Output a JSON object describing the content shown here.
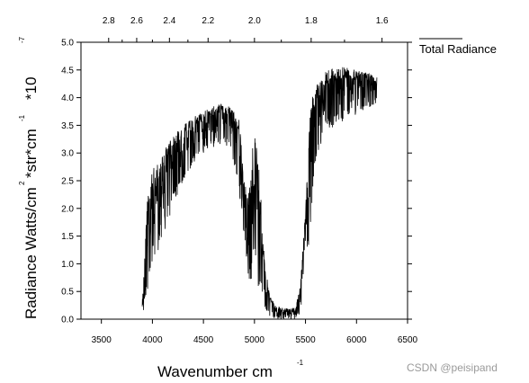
{
  "chart_data": {
    "type": "line",
    "xlabel": "Wavenumber cm",
    "xlabel_superscript": "-1",
    "ylabel": "Radiance Watts/cm",
    "ylabel_sup1": "2",
    "ylabel_mid": "*str*cm",
    "ylabel_sup2": "-1",
    "ylabel_scale": "*10",
    "ylabel_scale_exp": "-7",
    "xlim": [
      3300,
      6500
    ],
    "ylim": [
      0,
      5.0
    ],
    "x_ticks": [
      3500,
      4000,
      4500,
      5000,
      5500,
      6000,
      6500
    ],
    "x_tick_labels": [
      "3500",
      "4000",
      "4500",
      "5000",
      "5500",
      "6000",
      "6500"
    ],
    "y_ticks": [
      0.0,
      0.5,
      1.0,
      1.5,
      2.0,
      2.5,
      3.0,
      3.5,
      4.0,
      4.5,
      5.0
    ],
    "y_tick_labels": [
      "0.0",
      "0.5",
      "1.0",
      "1.5",
      "2.0",
      "2.5",
      "3.0",
      "3.5",
      "4.0",
      "4.5",
      "5.0"
    ],
    "top_axis_label_values": [
      2.8,
      2.6,
      2.4,
      2.2,
      2.0,
      1.8,
      1.6
    ],
    "top_axis_labels": [
      "2.8",
      "2.6",
      "2.4",
      "2.2",
      "2.0",
      "1.8",
      "1.6"
    ],
    "grid": false,
    "legend_position": "top-right",
    "series": [
      {
        "name": "Total Radiance",
        "color": "#000000",
        "envelope_upper": [
          [
            3900,
            0.3
          ],
          [
            3950,
            2.2
          ],
          [
            4000,
            2.7
          ],
          [
            4050,
            2.8
          ],
          [
            4100,
            3.0
          ],
          [
            4200,
            3.3
          ],
          [
            4300,
            3.5
          ],
          [
            4400,
            3.65
          ],
          [
            4500,
            3.75
          ],
          [
            4600,
            3.85
          ],
          [
            4700,
            3.9
          ],
          [
            4780,
            3.8
          ],
          [
            4850,
            3.6
          ],
          [
            4900,
            2.5
          ],
          [
            4950,
            2.3
          ],
          [
            5000,
            3.6
          ],
          [
            5050,
            2.6
          ],
          [
            5100,
            1.0
          ],
          [
            5150,
            0.45
          ],
          [
            5200,
            0.25
          ],
          [
            5300,
            0.2
          ],
          [
            5400,
            0.2
          ],
          [
            5450,
            0.6
          ],
          [
            5500,
            2.0
          ],
          [
            5550,
            3.9
          ],
          [
            5600,
            4.2
          ],
          [
            5700,
            4.5
          ],
          [
            5800,
            4.55
          ],
          [
            5900,
            4.55
          ],
          [
            6000,
            4.5
          ],
          [
            6100,
            4.45
          ],
          [
            6200,
            4.4
          ]
        ],
        "envelope_lower": [
          [
            3900,
            0.0
          ],
          [
            3950,
            0.5
          ],
          [
            4000,
            1.0
          ],
          [
            4050,
            1.2
          ],
          [
            4100,
            1.5
          ],
          [
            4200,
            2.0
          ],
          [
            4300,
            2.5
          ],
          [
            4400,
            2.8
          ],
          [
            4500,
            3.0
          ],
          [
            4600,
            3.1
          ],
          [
            4700,
            3.2
          ],
          [
            4780,
            3.0
          ],
          [
            4850,
            2.2
          ],
          [
            4900,
            1.5
          ],
          [
            4950,
            0.6
          ],
          [
            5000,
            0.9
          ],
          [
            5050,
            0.4
          ],
          [
            5100,
            0.2
          ],
          [
            5150,
            0.05
          ],
          [
            5200,
            0.0
          ],
          [
            5300,
            0.0
          ],
          [
            5400,
            0.0
          ],
          [
            5450,
            0.1
          ],
          [
            5500,
            0.8
          ],
          [
            5550,
            1.6
          ],
          [
            5600,
            2.8
          ],
          [
            5700,
            3.4
          ],
          [
            5800,
            3.5
          ],
          [
            5900,
            3.6
          ],
          [
            6000,
            3.7
          ],
          [
            6100,
            3.8
          ],
          [
            6200,
            3.9
          ]
        ]
      }
    ]
  },
  "watermark": "CSDN @peisipand"
}
